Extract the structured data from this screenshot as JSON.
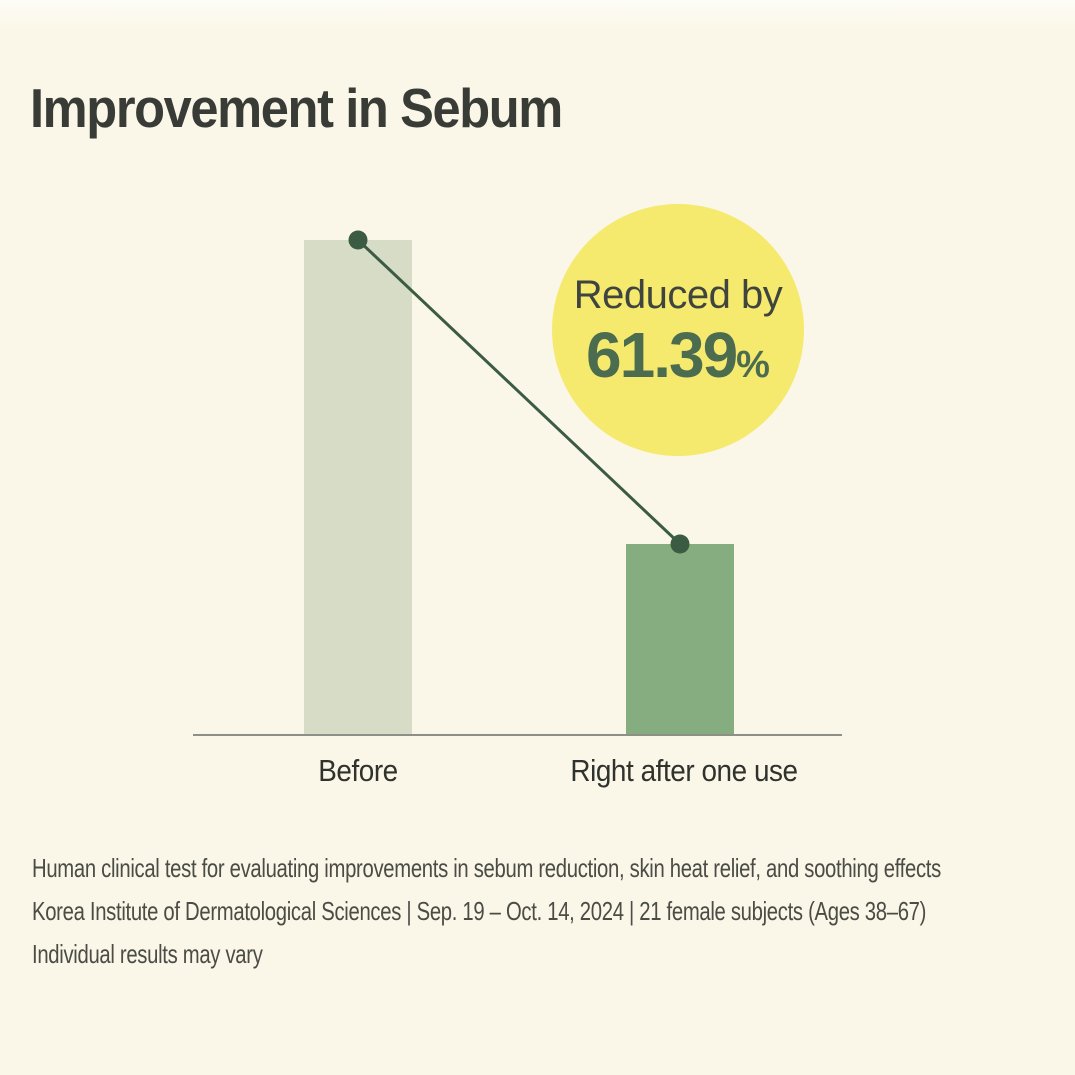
{
  "header": {
    "title": "Improvement in Sebum"
  },
  "chart_data": {
    "type": "bar",
    "title": "Improvement in Sebum",
    "categories": [
      "Before",
      "Right after one use"
    ],
    "values": [
      100,
      38.61
    ],
    "value_unit": "relative sebum level (% of baseline)",
    "ylim": [
      0,
      100
    ],
    "grid": false,
    "legend": false,
    "yaxis_ticks": "none (no visible y-axis)",
    "annotation": {
      "label": "Reduced by",
      "value": "61.39",
      "unit": "%"
    }
  },
  "footnotes": [
    "Human clinical test for evaluating improvements in sebum reduction, skin heat relief, and soothing effects",
    "Korea Institute of Dermatological Sciences | Sep. 19 – Oct. 14, 2024 | 21 female subjects (Ages 38–67)",
    "Individual results may vary"
  ],
  "colors": {
    "background": "#fbf7e8",
    "bar_before": "#d6dcc5",
    "bar_after": "#86ad80",
    "trend_line": "#3c5b43",
    "axis_line": "#8e9087",
    "badge_circle": "#f5ea6e",
    "badge_value_text": "#4c6c50",
    "badge_label_text": "#3f443e",
    "title_text": "#393b36",
    "footnote_text": "#4a4c45"
  }
}
